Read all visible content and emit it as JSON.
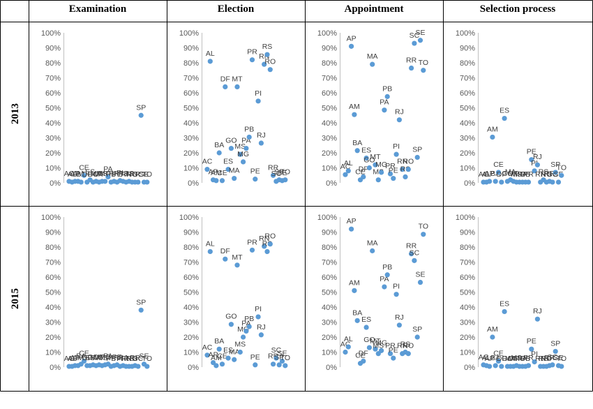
{
  "table": {
    "column_headers": [
      "Examination",
      "Election",
      "Appointment",
      "Selection process"
    ],
    "row_headers": [
      "2013",
      "2015"
    ]
  },
  "colors": {
    "marker": "#5b9bd5",
    "grid": "#000000",
    "axis": "#bfbfbf"
  },
  "chart_data": [
    {
      "type": "scatter",
      "panel": "2013-Examination",
      "y_ticks": [
        "0%",
        "10%",
        "20%",
        "30%",
        "40%",
        "50%",
        "60%",
        "70%",
        "80%",
        "90%",
        "100%"
      ],
      "ylim": [
        0,
        1
      ],
      "points": [
        [
          "AC",
          0.01
        ],
        [
          "AL",
          0.005
        ],
        [
          "AP",
          0.01
        ],
        [
          "AM",
          0.01
        ],
        [
          "BA",
          0.005
        ],
        [
          "CE",
          0.05
        ],
        [
          "DF",
          0.005
        ],
        [
          "ES",
          0.02
        ],
        [
          "GO",
          0.005
        ],
        [
          "MA",
          0.01
        ],
        [
          "MT",
          0.005
        ],
        [
          "MS",
          0.01
        ],
        [
          "MG",
          0.01
        ],
        [
          "PA",
          0.04
        ],
        [
          "PB",
          0.005
        ],
        [
          "PR",
          0.01
        ],
        [
          "PE",
          0.005
        ],
        [
          "PI",
          0.015
        ],
        [
          "RJ",
          0.01
        ],
        [
          "RN",
          0.005
        ],
        [
          "RS",
          0.01
        ],
        [
          "RO",
          0.005
        ],
        [
          "RR",
          0.005
        ],
        [
          "SC",
          0.005
        ],
        [
          "SP",
          0.45
        ],
        [
          "SE",
          0.005
        ],
        [
          "TO",
          0.005
        ]
      ]
    },
    {
      "type": "scatter",
      "panel": "2013-Election",
      "y_ticks": [
        "0%",
        "10%",
        "20%",
        "30%",
        "40%",
        "50%",
        "60%",
        "70%",
        "80%",
        "90%",
        "100%"
      ],
      "ylim": [
        0,
        1
      ],
      "points": [
        [
          "AC",
          0.09
        ],
        [
          "AL",
          0.81
        ],
        [
          "AP",
          0.02
        ],
        [
          "AM",
          0.015
        ],
        [
          "BA",
          0.2
        ],
        [
          "CE",
          0.015
        ],
        [
          "DF",
          0.64
        ],
        [
          "ES",
          0.09
        ],
        [
          "GO",
          0.23
        ],
        [
          "MA",
          0.03
        ],
        [
          "MT",
          0.64
        ],
        [
          "MS",
          0.19
        ],
        [
          "MG",
          0.14
        ],
        [
          "PA",
          0.23
        ],
        [
          "PB",
          0.305
        ],
        [
          "PR",
          0.82
        ],
        [
          "PE",
          0.025
        ],
        [
          "PI",
          0.545
        ],
        [
          "RJ",
          0.265
        ],
        [
          "RN",
          0.79
        ],
        [
          "RS",
          0.855
        ],
        [
          "RO",
          0.755
        ],
        [
          "RR",
          0.05
        ],
        [
          "SC",
          0.01
        ],
        [
          "SP",
          0.02
        ],
        [
          "SE",
          0.015
        ],
        [
          "TO",
          0.02
        ]
      ]
    },
    {
      "type": "scatter",
      "panel": "2013-Appointment",
      "y_ticks": [
        "0%",
        "10%",
        "20%",
        "30%",
        "40%",
        "50%",
        "60%",
        "70%",
        "80%",
        "90%",
        "100%"
      ],
      "ylim": [
        0,
        1
      ],
      "points": [
        [
          "AC",
          0.055
        ],
        [
          "AL",
          0.08
        ],
        [
          "AP",
          0.91
        ],
        [
          "AM",
          0.455
        ],
        [
          "BA",
          0.215
        ],
        [
          "CE",
          0.02
        ],
        [
          "DF",
          0.04
        ],
        [
          "ES",
          0.165
        ],
        [
          "GO",
          0.1
        ],
        [
          "MA",
          0.79
        ],
        [
          "MT",
          0.12
        ],
        [
          "MS",
          0.02
        ],
        [
          "MG",
          0.07
        ],
        [
          "PA",
          0.485
        ],
        [
          "PB",
          0.575
        ],
        [
          "PR",
          0.06
        ],
        [
          "PE",
          0.03
        ],
        [
          "PI",
          0.19
        ],
        [
          "RJ",
          0.42
        ],
        [
          "RN",
          0.09
        ],
        [
          "RS",
          0.04
        ],
        [
          "RO",
          0.09
        ],
        [
          "RR",
          0.765
        ],
        [
          "SC",
          0.93
        ],
        [
          "SP",
          0.17
        ],
        [
          "SE",
          0.95
        ],
        [
          "TO",
          0.75
        ]
      ]
    },
    {
      "type": "scatter",
      "panel": "2013-Selection process",
      "y_ticks": [
        "0%",
        "10%",
        "20%",
        "30%",
        "40%",
        "50%",
        "60%",
        "70%",
        "80%",
        "90%",
        "100%"
      ],
      "ylim": [
        0,
        1
      ],
      "points": [
        [
          "AC",
          0.005
        ],
        [
          "AL",
          0.005
        ],
        [
          "AP",
          0.01
        ],
        [
          "AM",
          0.305
        ],
        [
          "BA",
          0.01
        ],
        [
          "CE",
          0.07
        ],
        [
          "DF",
          0.005
        ],
        [
          "ES",
          0.43
        ],
        [
          "GO",
          0.01
        ],
        [
          "MA",
          0.02
        ],
        [
          "MT",
          0.01
        ],
        [
          "MS",
          0.005
        ],
        [
          "MG",
          0.005
        ],
        [
          "PA",
          0.005
        ],
        [
          "PB",
          0.005
        ],
        [
          "PR",
          0.005
        ],
        [
          "PE",
          0.155
        ],
        [
          "PI",
          0.08
        ],
        [
          "RJ",
          0.12
        ],
        [
          "RN",
          0.005
        ],
        [
          "RS",
          0.02
        ],
        [
          "RO",
          0.005
        ],
        [
          "RR",
          0.01
        ],
        [
          "SC",
          0.005
        ],
        [
          "SP",
          0.07
        ],
        [
          "SE",
          0.005
        ],
        [
          "TO",
          0.05
        ]
      ]
    },
    {
      "type": "scatter",
      "panel": "2015-Examination",
      "y_ticks": [
        "0%",
        "10%",
        "20%",
        "30%",
        "40%",
        "50%",
        "60%",
        "70%",
        "80%",
        "90%",
        "100%"
      ],
      "ylim": [
        0,
        1
      ],
      "points": [
        [
          "AC",
          0.005
        ],
        [
          "AL",
          0.005
        ],
        [
          "AP",
          0.01
        ],
        [
          "AM",
          0.01
        ],
        [
          "BA",
          0.02
        ],
        [
          "CE",
          0.04
        ],
        [
          "DF",
          0.01
        ],
        [
          "ES",
          0.01
        ],
        [
          "GO",
          0.015
        ],
        [
          "MA",
          0.01
        ],
        [
          "MT",
          0.015
        ],
        [
          "MS",
          0.01
        ],
        [
          "MG",
          0.015
        ],
        [
          "PA",
          0.02
        ],
        [
          "PB",
          0.005
        ],
        [
          "PR",
          0.01
        ],
        [
          "PE",
          0.015
        ],
        [
          "PI",
          0.005
        ],
        [
          "RJ",
          0.01
        ],
        [
          "RN",
          0.005
        ],
        [
          "RS",
          0.005
        ],
        [
          "RO",
          0.005
        ],
        [
          "RR",
          0.01
        ],
        [
          "SC",
          0.005
        ],
        [
          "SP",
          0.38
        ],
        [
          "SE",
          0.02
        ],
        [
          "TO",
          0.005
        ]
      ]
    },
    {
      "type": "scatter",
      "panel": "2015-Election",
      "y_ticks": [
        "0%",
        "10%",
        "20%",
        "30%",
        "40%",
        "50%",
        "60%",
        "70%",
        "80%",
        "90%",
        "100%"
      ],
      "ylim": [
        0,
        1
      ],
      "points": [
        [
          "AC",
          0.08
        ],
        [
          "AL",
          0.77
        ],
        [
          "AP",
          0.03
        ],
        [
          "AM",
          0.01
        ],
        [
          "BA",
          0.12
        ],
        [
          "CE",
          0.02
        ],
        [
          "DF",
          0.72
        ],
        [
          "ES",
          0.06
        ],
        [
          "GO",
          0.285
        ],
        [
          "MA",
          0.05
        ],
        [
          "MT",
          0.68
        ],
        [
          "MS",
          0.1
        ],
        [
          "MG",
          0.2
        ],
        [
          "PA",
          0.24
        ],
        [
          "PB",
          0.27
        ],
        [
          "PR",
          0.78
        ],
        [
          "PE",
          0.015
        ],
        [
          "PI",
          0.335
        ],
        [
          "RJ",
          0.215
        ],
        [
          "RN",
          0.805
        ],
        [
          "RS",
          0.77
        ],
        [
          "RO",
          0.82
        ],
        [
          "RR",
          0.02
        ],
        [
          "SC",
          0.06
        ],
        [
          "SP",
          0.015
        ],
        [
          "SE",
          0.04
        ],
        [
          "TO",
          0.01
        ]
      ]
    },
    {
      "type": "scatter",
      "panel": "2015-Appointment",
      "y_ticks": [
        "0%",
        "10%",
        "20%",
        "30%",
        "40%",
        "50%",
        "60%",
        "70%",
        "80%",
        "90%",
        "100%"
      ],
      "ylim": [
        0,
        1
      ],
      "points": [
        [
          "AC",
          0.1
        ],
        [
          "AL",
          0.135
        ],
        [
          "AP",
          0.92
        ],
        [
          "AM",
          0.51
        ],
        [
          "BA",
          0.31
        ],
        [
          "CE",
          0.025
        ],
        [
          "DF",
          0.04
        ],
        [
          "ES",
          0.265
        ],
        [
          "GO",
          0.13
        ],
        [
          "MA",
          0.775
        ],
        [
          "MT",
          0.12
        ],
        [
          "MS",
          0.09
        ],
        [
          "MG",
          0.11
        ],
        [
          "PA",
          0.535
        ],
        [
          "PB",
          0.615
        ],
        [
          "PR",
          0.09
        ],
        [
          "PE",
          0.06
        ],
        [
          "PI",
          0.485
        ],
        [
          "RJ",
          0.28
        ],
        [
          "RN",
          0.09
        ],
        [
          "RS",
          0.1
        ],
        [
          "RO",
          0.09
        ],
        [
          "RR",
          0.755
        ],
        [
          "SC",
          0.71
        ],
        [
          "SP",
          0.2
        ],
        [
          "SE",
          0.565
        ],
        [
          "TO",
          0.885
        ]
      ]
    },
    {
      "type": "scatter",
      "panel": "2015-Selection process",
      "y_ticks": [
        "0%",
        "10%",
        "20%",
        "30%",
        "40%",
        "50%",
        "60%",
        "70%",
        "80%",
        "90%",
        "100%"
      ],
      "ylim": [
        0,
        1
      ],
      "points": [
        [
          "AC",
          0.015
        ],
        [
          "AL",
          0.01
        ],
        [
          "AP",
          0.005
        ],
        [
          "AM",
          0.2
        ],
        [
          "BA",
          0.01
        ],
        [
          "CE",
          0.04
        ],
        [
          "DF",
          0.005
        ],
        [
          "ES",
          0.37
        ],
        [
          "GO",
          0.005
        ],
        [
          "MA",
          0.005
        ],
        [
          "MT",
          0.005
        ],
        [
          "MS",
          0.01
        ],
        [
          "MG",
          0.005
        ],
        [
          "PA",
          0.005
        ],
        [
          "PB",
          0.005
        ],
        [
          "PR",
          0.01
        ],
        [
          "PE",
          0.12
        ],
        [
          "PI",
          0.035
        ],
        [
          "RJ",
          0.32
        ],
        [
          "RN",
          0.005
        ],
        [
          "RS",
          0.005
        ],
        [
          "RO",
          0.005
        ],
        [
          "RR",
          0.01
        ],
        [
          "SC",
          0.015
        ],
        [
          "SP",
          0.105
        ],
        [
          "SE",
          0.01
        ],
        [
          "TO",
          0.005
        ]
      ]
    }
  ]
}
